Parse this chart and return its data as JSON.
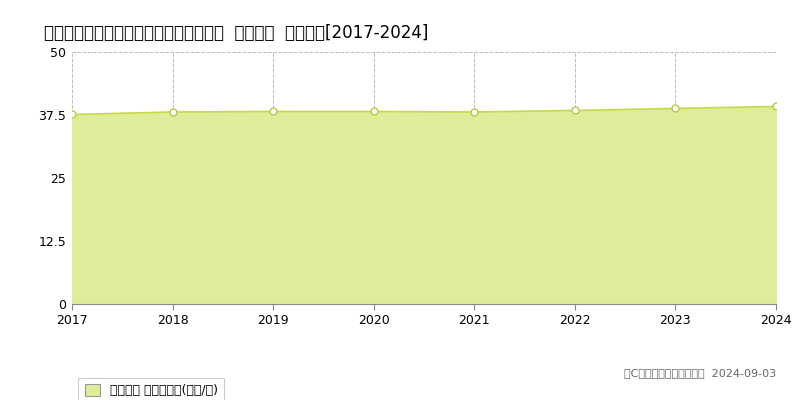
{
  "title": "愛知県愛知郡東郷町白鳥２丁目４番３外  地価公示  地価推移[2017-2024]",
  "years": [
    2017,
    2018,
    2019,
    2020,
    2021,
    2022,
    2023,
    2024
  ],
  "values": [
    37.6,
    38.1,
    38.2,
    38.2,
    38.1,
    38.4,
    38.8,
    39.2
  ],
  "ylim": [
    0,
    50
  ],
  "yticks": [
    0,
    12.5,
    25,
    37.5,
    50
  ],
  "line_color": "#c8d84a",
  "fill_color": "#dded99",
  "marker_facecolor": "#ffffff",
  "marker_edgecolor": "#b8c840",
  "grid_color": "#bbbbbb",
  "background_color": "#ffffff",
  "plot_bg_color": "#ffffff",
  "legend_label": "地価公示 平均坪単価(万円/坪)",
  "copyright_text": "（C）土地価格ドットコム  2024-09-03",
  "title_fontsize": 12,
  "axis_fontsize": 9,
  "legend_fontsize": 9
}
